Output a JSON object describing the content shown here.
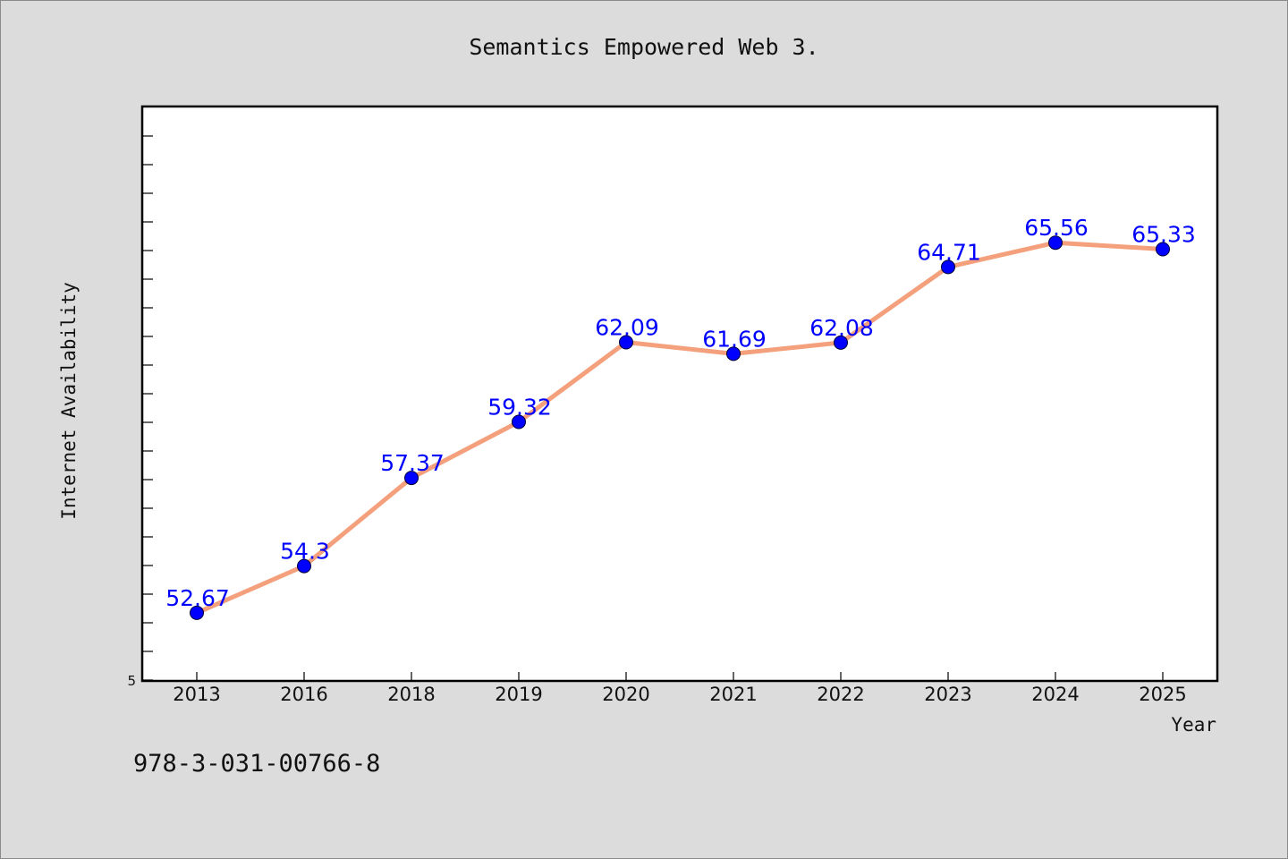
{
  "chart_data": {
    "type": "line",
    "title": "Semantics Empowered Web 3.",
    "xlabel": "Year",
    "ylabel": "Internet Availability",
    "categories": [
      "2013",
      "2016",
      "2018",
      "2019",
      "2020",
      "2021",
      "2022",
      "2023",
      "2024",
      "2025"
    ],
    "series": [
      {
        "values": [
          52.67,
          54.3,
          57.37,
          59.32,
          62.09,
          61.69,
          62.08,
          64.71,
          65.56,
          65.33
        ],
        "data_labels": [
          "52.67",
          "54.3",
          "57.37",
          "59.32",
          "62.09",
          "61.69",
          "62.08",
          "64.71",
          "65.56",
          "65.33"
        ]
      }
    ],
    "ytick_labels": [
      "5"
    ],
    "ylim": [
      50.3,
      70.3
    ],
    "grid": false,
    "legend": "none",
    "colors": {
      "line": "#f4a07c",
      "marker": "#0000ff",
      "label": "#0000ff"
    }
  },
  "footer_note": "978-3-031-00766-8"
}
